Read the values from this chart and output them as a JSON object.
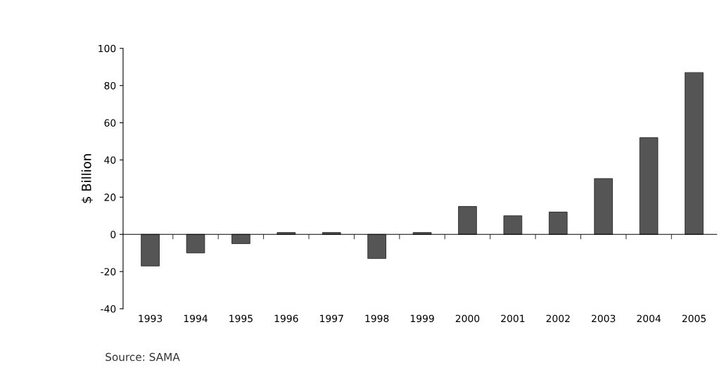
{
  "chart_data": {
    "type": "bar",
    "categories": [
      "1993",
      "1994",
      "1995",
      "1996",
      "1997",
      "1998",
      "1999",
      "2000",
      "2001",
      "2002",
      "2003",
      "2004",
      "2005"
    ],
    "values": [
      -17,
      -10,
      -5,
      1,
      1,
      -13,
      1,
      15,
      10,
      12,
      30,
      52,
      87
    ],
    "color": "#555555",
    "ylabel": "$ Billion",
    "ylim": [
      -40,
      100
    ],
    "yticks": [
      -40,
      -20,
      0,
      20,
      40,
      60,
      80,
      100
    ],
    "legend": false,
    "annotations": [
      "Source: SAMA"
    ]
  }
}
